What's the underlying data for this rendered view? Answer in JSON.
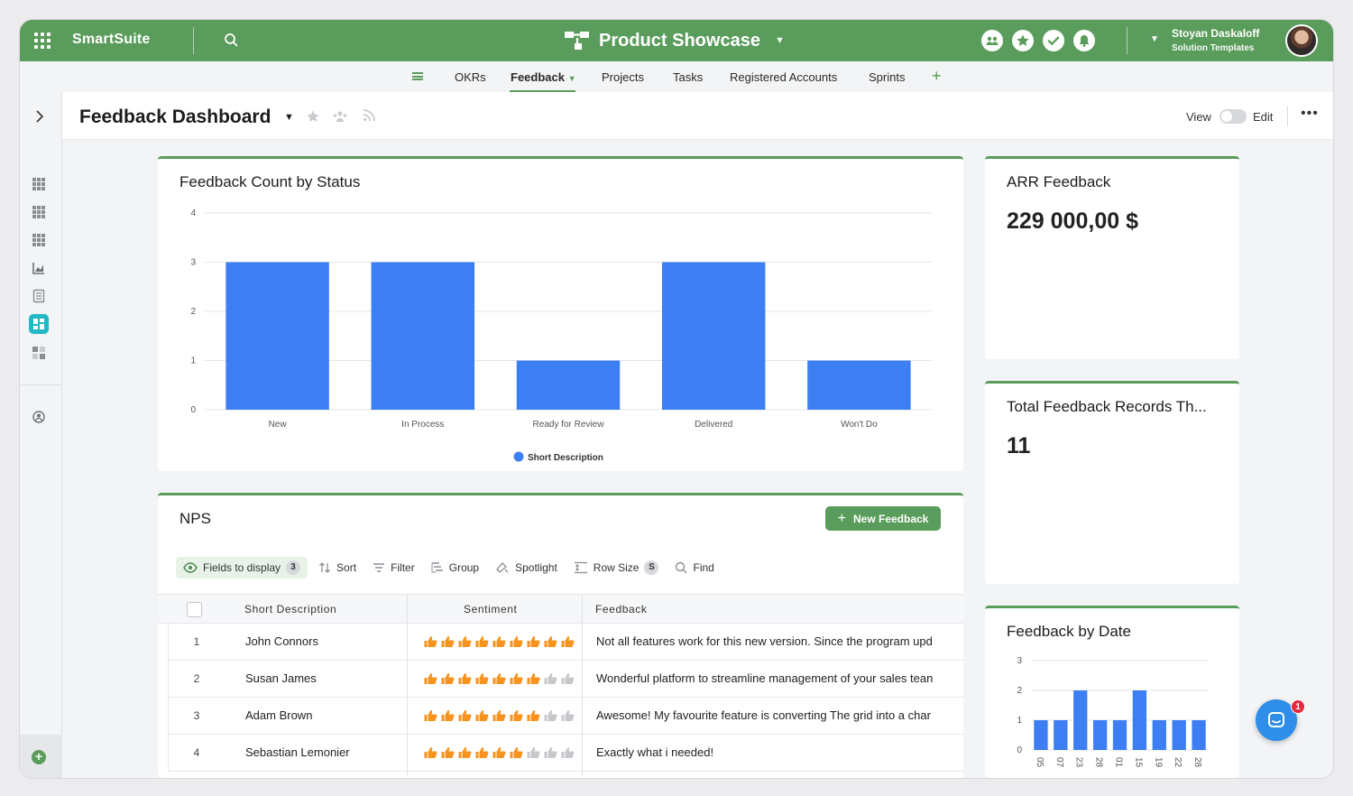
{
  "app": {
    "brand": "SmartSuite",
    "workspace_title": "Product Showcase"
  },
  "user": {
    "name": "Stoyan Daskaloff",
    "role": "Solution Templates"
  },
  "tabs": [
    {
      "label": "OKRs"
    },
    {
      "label": "Feedback",
      "active": true
    },
    {
      "label": "Projects"
    },
    {
      "label": "Tasks"
    },
    {
      "label": "Registered Accounts"
    },
    {
      "label": "Sprints"
    }
  ],
  "page": {
    "title": "Feedback Dashboard",
    "view_label": "View",
    "edit_label": "Edit"
  },
  "colors": {
    "brand_green": "#5a9c5b",
    "bar_blue": "#3d7ff2",
    "thumb_orange": "#f7931e",
    "thumb_gray": "#c6c8cc"
  },
  "status_chart": {
    "title": "Feedback Count by Status",
    "chart_data": {
      "type": "bar",
      "categories": [
        "New",
        "In Process",
        "Ready for Review",
        "Delivered",
        "Won't Do"
      ],
      "series": [
        {
          "name": "Short Description",
          "values": [
            3,
            3,
            1,
            3,
            1
          ]
        }
      ],
      "y_ticks": [
        "0",
        "1",
        "2",
        "3",
        "4"
      ],
      "ylim": [
        0,
        4
      ],
      "grid": true,
      "legend": "bottom-center"
    }
  },
  "arr": {
    "title": "ARR Feedback",
    "value": "229 000,00 $"
  },
  "total": {
    "title": "Total Feedback Records Th...",
    "value": "11"
  },
  "date_chart": {
    "title": "Feedback by Date",
    "chart_data": {
      "type": "bar",
      "categories": [
        "05",
        "07",
        "23",
        "28",
        "01",
        "15",
        "19",
        "22",
        "28"
      ],
      "values": [
        1,
        1,
        2,
        1,
        1,
        2,
        1,
        1,
        1
      ],
      "y_ticks": [
        "0",
        "1",
        "2",
        "3"
      ],
      "ylim": [
        0,
        3
      ],
      "grid": true
    }
  },
  "nps": {
    "title": "NPS",
    "new_button": "New Feedback",
    "toolbar": {
      "fields": "Fields to display",
      "fields_count": "3",
      "sort": "Sort",
      "filter": "Filter",
      "group": "Group",
      "spotlight": "Spotlight",
      "row_size": "Row Size",
      "row_size_value": "S",
      "find": "Find"
    },
    "columns": [
      "Short Description",
      "Sentiment",
      "Feedback"
    ],
    "rows": [
      {
        "num": "1",
        "desc": "John Connors",
        "sentiment": 9,
        "feedback": "Not all features work for this new version. Since the program upd"
      },
      {
        "num": "2",
        "desc": "Susan James",
        "sentiment": 7,
        "feedback": "Wonderful platform to streamline management of your sales tean"
      },
      {
        "num": "3",
        "desc": "Adam Brown",
        "sentiment": 7,
        "feedback": "Awesome! My favourite feature is converting The grid into a char"
      },
      {
        "num": "4",
        "desc": "Sebastian Lemonier",
        "sentiment": 6,
        "feedback": "Exactly what i needed!"
      }
    ]
  },
  "chat": {
    "badge": "1"
  }
}
